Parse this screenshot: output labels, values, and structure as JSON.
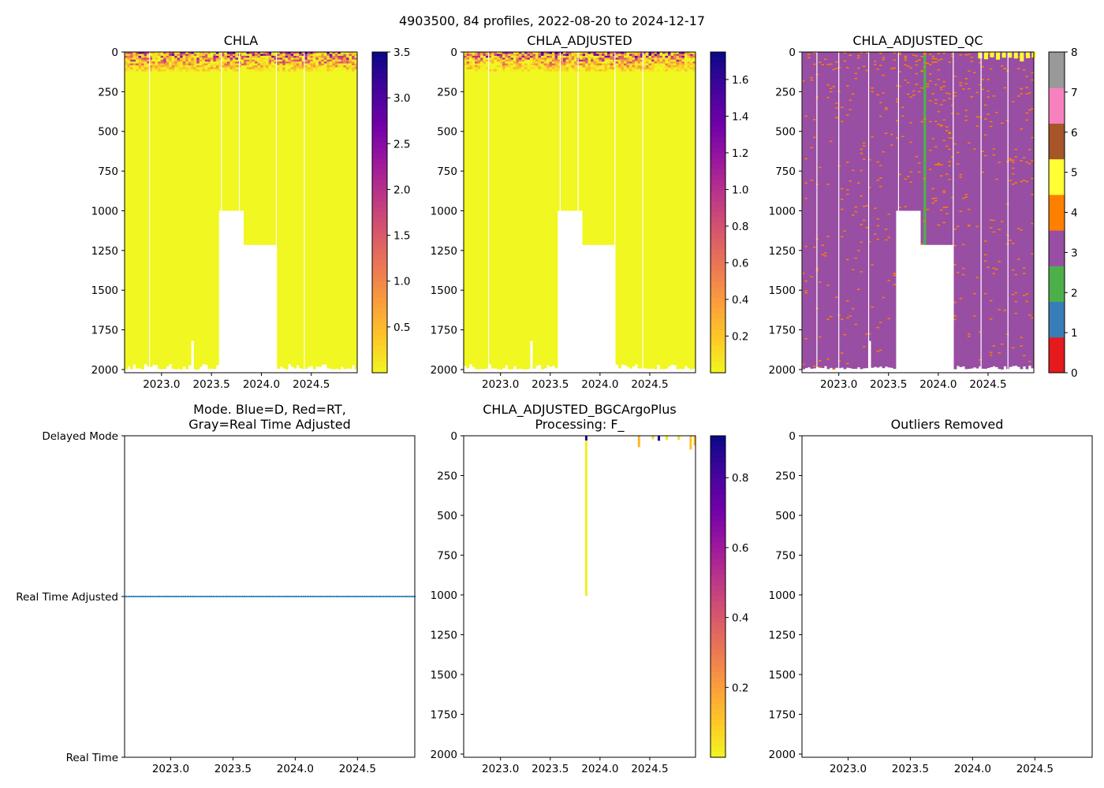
{
  "figure": {
    "suptitle": "4903500, 84 profiles, 2022-08-20 to 2024-12-17"
  },
  "colors": {
    "plasma": [
      "#0d0887",
      "#46039f",
      "#7201a8",
      "#9c179e",
      "#bd3786",
      "#d8576b",
      "#ed7953",
      "#fb9f3a",
      "#fdca26",
      "#f0f921"
    ],
    "qc": [
      "#e41a1c",
      "#377eb8",
      "#4daf4a",
      "#984ea3",
      "#ff7f00",
      "#ffff33",
      "#a65628",
      "#f781bf",
      "#999999"
    ],
    "mode_marker": "#1f77b4"
  },
  "chart_data": [
    {
      "id": "chla",
      "type": "heatmap",
      "title": "CHLA",
      "colormap": "plasma",
      "xlim": [
        2022.63,
        2024.96
      ],
      "ylim": [
        2020,
        0
      ],
      "xticks": [
        "2023.0",
        "2023.5",
        "2024.0",
        "2024.5"
      ],
      "yticks": [
        "0",
        "250",
        "500",
        "750",
        "1000",
        "1250",
        "1500",
        "1750",
        "2000"
      ],
      "colorbar": {
        "range": [
          0,
          3.5
        ],
        "ticks": [
          "0.5",
          "1.0",
          "1.5",
          "2.0",
          "2.5",
          "3.0",
          "3.5"
        ]
      },
      "surface_max_value": 3.4,
      "deep_value": 0.02,
      "max_depth_typical": 2000,
      "gaps": [
        {
          "x0": 2023.57,
          "x1": 2023.82,
          "depth_from": 1000
        },
        {
          "x0": 2023.82,
          "x1": 2024.15,
          "depth_from": 1215
        }
      ]
    },
    {
      "id": "chla_adjusted",
      "type": "heatmap",
      "title": "CHLA_ADJUSTED",
      "colormap": "plasma",
      "xlim": [
        2022.63,
        2024.96
      ],
      "ylim": [
        2020,
        0
      ],
      "xticks": [
        "2023.0",
        "2023.5",
        "2024.0",
        "2024.5"
      ],
      "yticks": [
        "0",
        "250",
        "500",
        "750",
        "1000",
        "1250",
        "1500",
        "1750",
        "2000"
      ],
      "colorbar": {
        "range": [
          0,
          1.75
        ],
        "ticks": [
          "0.2",
          "0.4",
          "0.6",
          "0.8",
          "1.0",
          "1.2",
          "1.4",
          "1.6"
        ]
      },
      "surface_max_value": 1.7,
      "deep_value": 0.01,
      "max_depth_typical": 2000,
      "gaps": [
        {
          "x0": 2023.57,
          "x1": 2023.82,
          "depth_from": 1000
        },
        {
          "x0": 2023.82,
          "x1": 2024.15,
          "depth_from": 1215
        }
      ]
    },
    {
      "id": "chla_adjusted_qc",
      "type": "heatmap",
      "title": "CHLA_ADJUSTED_QC",
      "colormap": "qc-categorical",
      "xlim": [
        2022.63,
        2024.96
      ],
      "ylim": [
        2020,
        0
      ],
      "xticks": [
        "2023.0",
        "2023.5",
        "2024.0",
        "2024.5"
      ],
      "yticks": [
        "0",
        "250",
        "500",
        "750",
        "1000",
        "1250",
        "1500",
        "1750",
        "2000"
      ],
      "colorbar": {
        "range": [
          0,
          8
        ],
        "ticks": [
          "0",
          "1",
          "2",
          "3",
          "4",
          "5",
          "6",
          "7",
          "8"
        ]
      },
      "dominant_flag": 3,
      "scattered_flag": 4,
      "surface_flag": 5,
      "profile_flag_2_at": 2023.85,
      "gaps": [
        {
          "x0": 2023.57,
          "x1": 2023.82,
          "depth_from": 1000
        },
        {
          "x0": 2023.82,
          "x1": 2024.15,
          "depth_from": 1215
        }
      ]
    },
    {
      "id": "mode",
      "type": "scatter",
      "title_lines": [
        "Mode. Blue=D, Red=RT,",
        "Gray=Real Time Adjusted"
      ],
      "xlim": [
        2022.63,
        2024.96
      ],
      "xticks": [
        "2023.0",
        "2023.5",
        "2024.0",
        "2024.5"
      ],
      "y_categories": [
        "Delayed Mode",
        "Real Time Adjusted",
        "Real Time"
      ],
      "points_category": "Real Time Adjusted",
      "n_points": 84,
      "x_start": 2022.63,
      "x_end": 2024.96
    },
    {
      "id": "bgcargoplus",
      "type": "heatmap",
      "title_lines": [
        "CHLA_ADJUSTED_BGCArgoPlus",
        "Processing: F_"
      ],
      "colormap": "plasma",
      "xlim": [
        2022.63,
        2024.96
      ],
      "ylim": [
        2020,
        0
      ],
      "xticks": [
        "2023.0",
        "2023.5",
        "2024.0",
        "2024.5"
      ],
      "yticks": [
        "0",
        "250",
        "500",
        "750",
        "1000",
        "1250",
        "1500",
        "1750",
        "2000"
      ],
      "colorbar": {
        "range": [
          0,
          0.92
        ],
        "ticks": [
          "0.2",
          "0.4",
          "0.6",
          "0.8"
        ]
      },
      "profiles": [
        {
          "x": 2023.85,
          "depth": 1005,
          "surface": 0.9,
          "deep": 0.02
        },
        {
          "x": 2024.38,
          "depth": 70,
          "surface": 0.15,
          "deep": 0.15
        },
        {
          "x": 2024.52,
          "depth": 20,
          "surface": 0.08,
          "deep": 0.08
        },
        {
          "x": 2024.58,
          "depth": 30,
          "surface": 0.9,
          "deep": 0.9
        },
        {
          "x": 2024.66,
          "depth": 25,
          "surface": 0.05,
          "deep": 0.05
        },
        {
          "x": 2024.78,
          "depth": 25,
          "surface": 0.06,
          "deep": 0.06
        },
        {
          "x": 2024.9,
          "depth": 85,
          "surface": 0.12,
          "deep": 0.12
        },
        {
          "x": 2024.94,
          "depth": 60,
          "surface": 0.1,
          "deep": 0.1
        }
      ]
    },
    {
      "id": "outliers",
      "type": "scatter",
      "title": "Outliers Removed",
      "xlim": [
        2022.63,
        2024.96
      ],
      "ylim": [
        2020,
        0
      ],
      "xticks": [
        "2023.0",
        "2023.5",
        "2024.0",
        "2024.5"
      ],
      "yticks": [
        "0",
        "250",
        "500",
        "750",
        "1000",
        "1250",
        "1500",
        "1750",
        "2000"
      ],
      "points": []
    }
  ]
}
